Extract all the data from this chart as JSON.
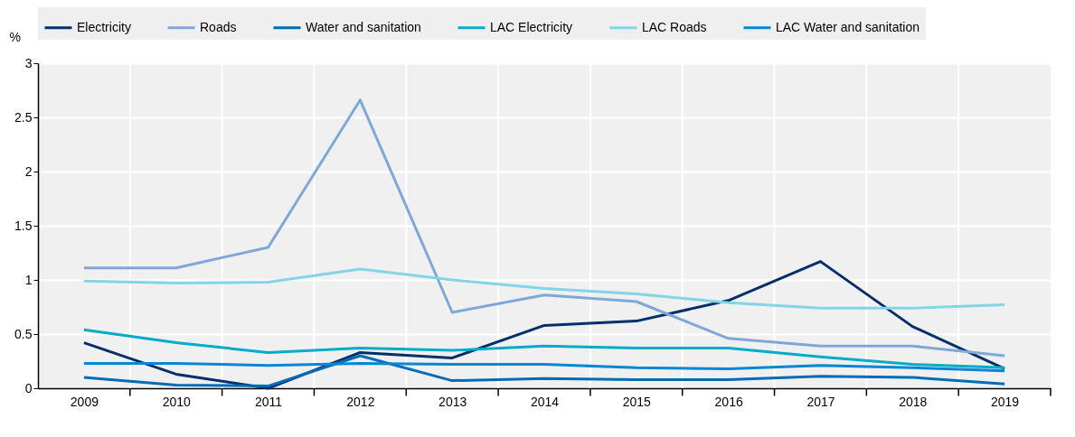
{
  "chart_data": {
    "type": "line",
    "ylabel": "%",
    "categories": [
      "2009",
      "2010",
      "2011",
      "2012",
      "2013",
      "2014",
      "2015",
      "2016",
      "2017",
      "2018",
      "2019"
    ],
    "ylim": [
      0,
      3
    ],
    "yticks": [
      0,
      0.5,
      1,
      1.5,
      2,
      2.5,
      3
    ],
    "grid": true,
    "legend": "top",
    "line_style": "solid",
    "series": [
      {
        "name": "Electricity",
        "color": "#002f6c",
        "values": [
          0.42,
          0.13,
          0.0,
          0.33,
          0.28,
          0.58,
          0.62,
          0.81,
          1.17,
          0.57,
          0.18
        ]
      },
      {
        "name": "Roads",
        "color": "#7fa8d9",
        "values": [
          1.11,
          1.11,
          1.3,
          2.66,
          0.7,
          0.86,
          0.8,
          0.46,
          0.39,
          0.39,
          0.3
        ]
      },
      {
        "name": "Water and sanitation",
        "color": "#006bb6",
        "values": [
          0.1,
          0.03,
          0.02,
          0.3,
          0.07,
          0.09,
          0.08,
          0.08,
          0.11,
          0.1,
          0.04
        ]
      },
      {
        "name": "LAC Electricity",
        "color": "#00acc8",
        "values": [
          0.54,
          0.42,
          0.33,
          0.37,
          0.35,
          0.39,
          0.37,
          0.37,
          0.29,
          0.22,
          0.19
        ]
      },
      {
        "name": "LAC Roads",
        "color": "#85d3e6",
        "values": [
          0.99,
          0.97,
          0.98,
          1.1,
          1.0,
          0.92,
          0.87,
          0.79,
          0.74,
          0.74,
          0.77
        ]
      },
      {
        "name": "LAC Water and sanitation",
        "color": "#0587d4",
        "values": [
          0.23,
          0.23,
          0.21,
          0.23,
          0.22,
          0.22,
          0.19,
          0.18,
          0.21,
          0.19,
          0.16
        ]
      }
    ]
  }
}
